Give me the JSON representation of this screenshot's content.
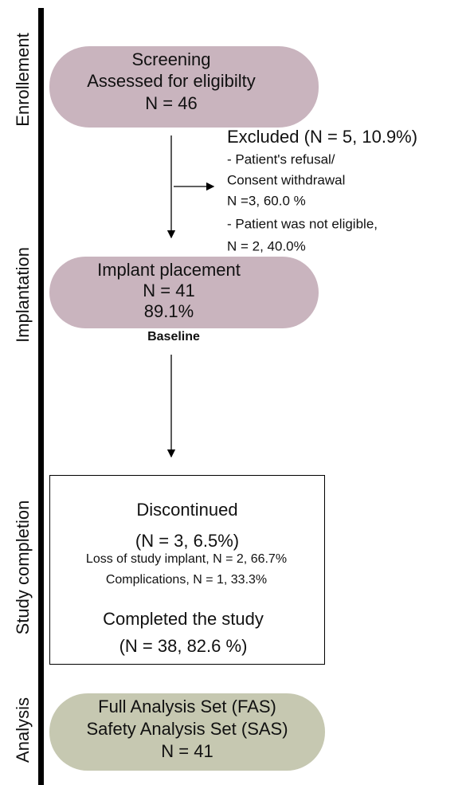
{
  "stages": [
    "Enrollement",
    "Implantation",
    "Study completion",
    "Analysis"
  ],
  "nodes": [
    {
      "lines": [
        "Screening",
        "Assessed for eligibilty",
        "N = 46"
      ]
    },
    {
      "title": "Excluded (N = 5, 10.9%)",
      "lines": [
        "- Patient's refusal/",
        "Consent withdrawal",
        "N =3, 60.0 %",
        "- Patient was not eligible,",
        "N = 2, 40.0%"
      ]
    },
    {
      "lines": [
        "Implant placement",
        "N = 41",
        "89.1%"
      ],
      "note": "Baseline"
    },
    {
      "title": [
        "Discontinued",
        "(N = 3, 6.5%)"
      ],
      "lines": [
        "Loss of study implant, N = 2, 66.7%",
        "Complications, N = 1, 33.3%"
      ],
      "footer": [
        "Completed the study",
        "(N = 38, 82.6 %)"
      ]
    },
    {
      "lines": [
        "Full Analysis Set (FAS)",
        "Safety Analysis Set (SAS)",
        "N = 41"
      ]
    }
  ]
}
